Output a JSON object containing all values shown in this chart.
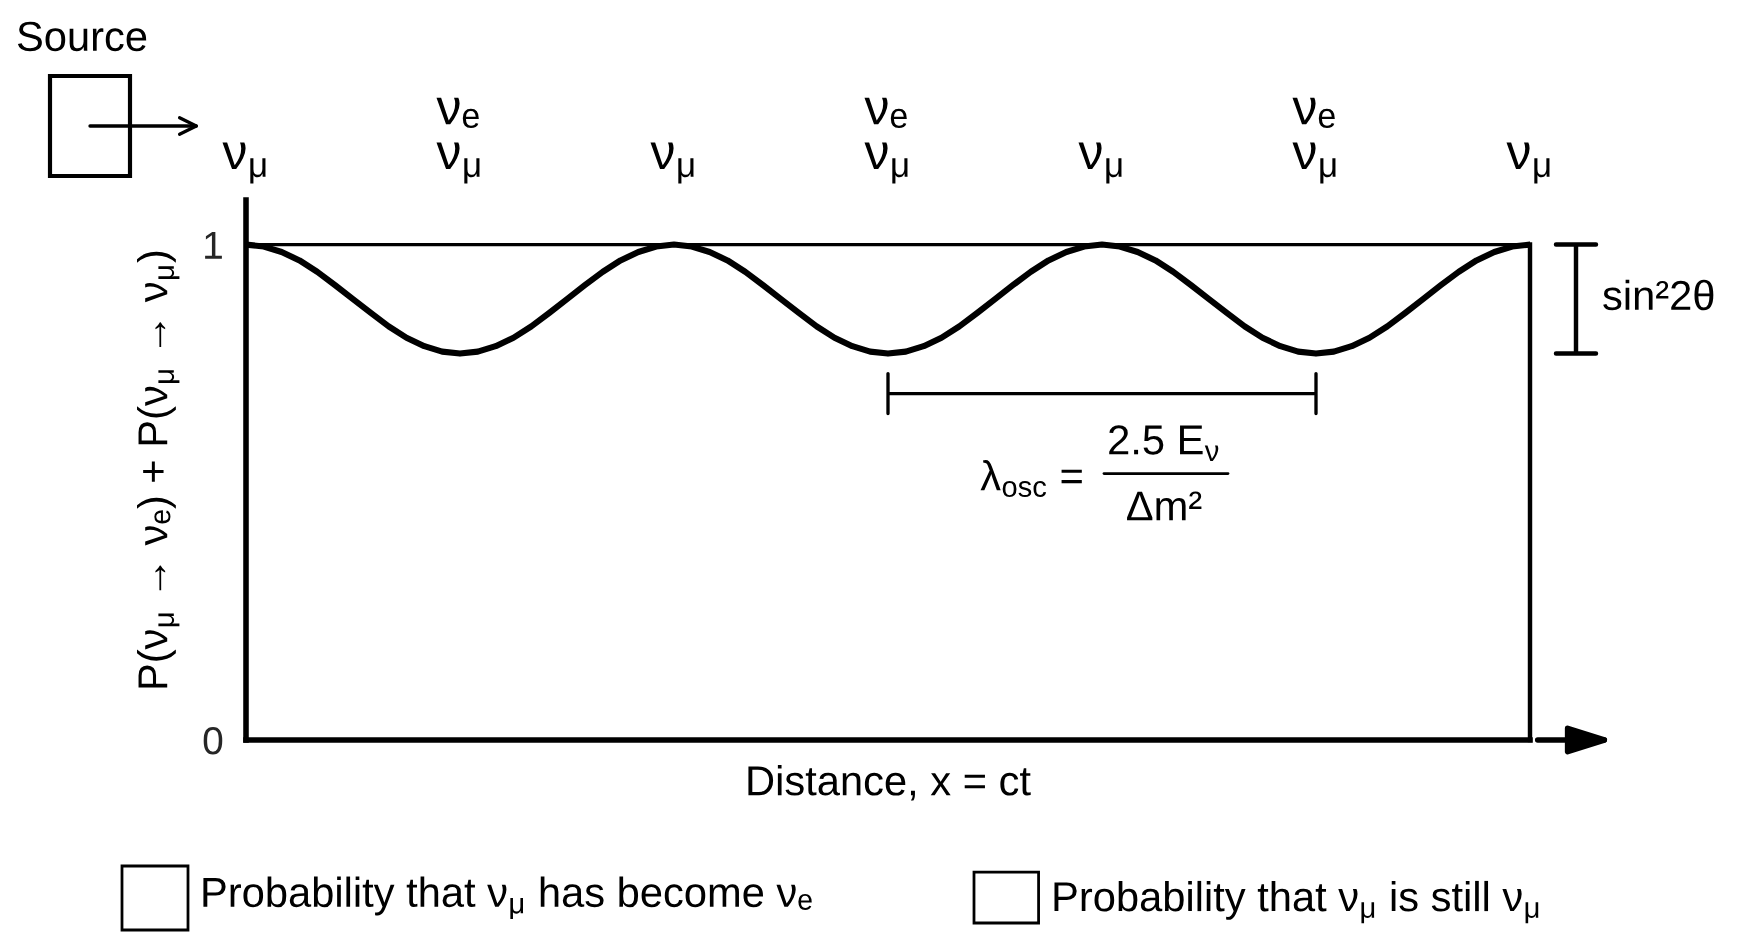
{
  "chart_data": {
    "type": "line",
    "xlabel": "Distance, x = ct",
    "ylabel": "P(ν$_{μ}$ → νₑ) + P(ν$_{μ}$ → ν$_{μ}$)",
    "categories": [
      null,
      null,
      null,
      null,
      null,
      null,
      null,
      null,
      null,
      null,
      null,
      null,
      null,
      null,
      null,
      null,
      null,
      null,
      null,
      null,
      null,
      null,
      null,
      null,
      null,
      null,
      null,
      null,
      null,
      null,
      null,
      null,
      null,
      null,
      null,
      null,
      null,
      null,
      null,
      null,
      null,
      null,
      null,
      null,
      null,
      null,
      null,
      null,
      null,
      null,
      null,
      null,
      null,
      null,
      null,
      null,
      null,
      null,
      null,
      null,
      null,
      null,
      null,
      null,
      null,
      null,
      null,
      null,
      null,
      null,
      null,
      null,
      null
    ],
    "series": [
      {
        "name": "Probability that ν$_{μ}$ is still ν$_{μ}$",
        "color": "#000000",
        "values": [
          1,
          0.996,
          0.985,
          0.968,
          0.945,
          0.918,
          0.89,
          0.862,
          0.835,
          0.812,
          0.795,
          0.784,
          0.78,
          0.784,
          0.795,
          0.812,
          0.835,
          0.862,
          0.89,
          0.918,
          0.945,
          0.968,
          0.985,
          0.996,
          1,
          0.996,
          0.985,
          0.968,
          0.945,
          0.918,
          0.89,
          0.862,
          0.835,
          0.812,
          0.795,
          0.784,
          0.78,
          0.784,
          0.795,
          0.812,
          0.835,
          0.862,
          0.89,
          0.918,
          0.945,
          0.968,
          0.985,
          0.996,
          1,
          0.996,
          0.985,
          0.968,
          0.945,
          0.918,
          0.89,
          0.862,
          0.835,
          0.812,
          0.795,
          0.784,
          0.78,
          0.784,
          0.795,
          0.812,
          0.835,
          0.862,
          0.89,
          0.918,
          0.945,
          0.968,
          0.985,
          0.996,
          1
        ]
      }
    ],
    "ref_lines": [
      {
        "axis": "y",
        "value": 1
      }
    ],
    "ylim": [
      0,
      1.09
    ],
    "yticks": [
      0,
      1
    ],
    "legend": "bottom",
    "annotations": [
      "Source",
      "ν$_{μ}$",
      "νₑ\nν$_{μ}$",
      "ν$_{μ}$",
      "νₑ\nν$_{μ}$",
      "ν$_{μ}$",
      "νₑ\nν$_{μ}$",
      "ν$_{μ}$",
      "sin²2θ",
      "λ$_{osc}$ =",
      "2.5 E$_{ν}$",
      "Δm²",
      "Probability that ν$_{μ}$ has become νₑ"
    ]
  }
}
